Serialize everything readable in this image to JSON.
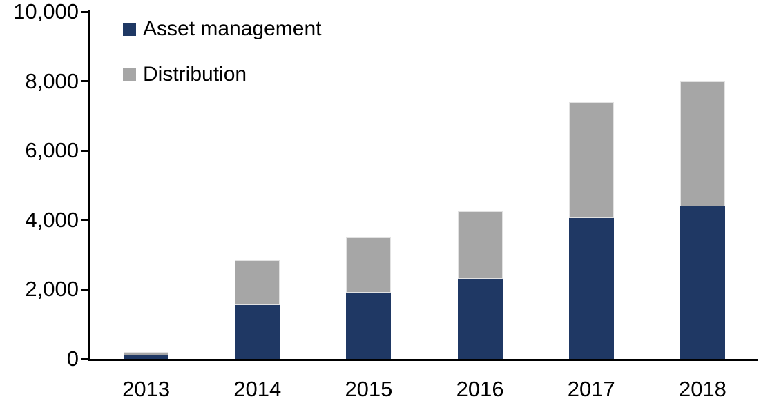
{
  "chart_data": {
    "type": "bar",
    "stacked": true,
    "title": "",
    "xlabel": "",
    "ylabel": "",
    "categories": [
      "2013",
      "2014",
      "2015",
      "2016",
      "2017",
      "2018"
    ],
    "series": [
      {
        "name": "Asset management",
        "color": "#1F3864",
        "values": [
          100,
          1550,
          1900,
          2300,
          4050,
          4400
        ]
      },
      {
        "name": "Distribution",
        "color": "#A6A6A6",
        "values": [
          100,
          1300,
          1600,
          1950,
          3350,
          3600
        ]
      }
    ],
    "totals": [
      200,
      2850,
      3500,
      4250,
      7400,
      8000
    ],
    "ylim": [
      0,
      10000
    ],
    "yticks": [
      {
        "value": 0,
        "label": "0"
      },
      {
        "value": 2000,
        "label": "2,000"
      },
      {
        "value": 4000,
        "label": "4,000"
      },
      {
        "value": 6000,
        "label": "6,000"
      },
      {
        "value": 8000,
        "label": "8,000"
      },
      {
        "value": 10000,
        "label": "10,000"
      }
    ],
    "grid": false,
    "legend_position": "top-left-inside",
    "axis_color": "#000000",
    "background_color": "#FFFFFF"
  }
}
